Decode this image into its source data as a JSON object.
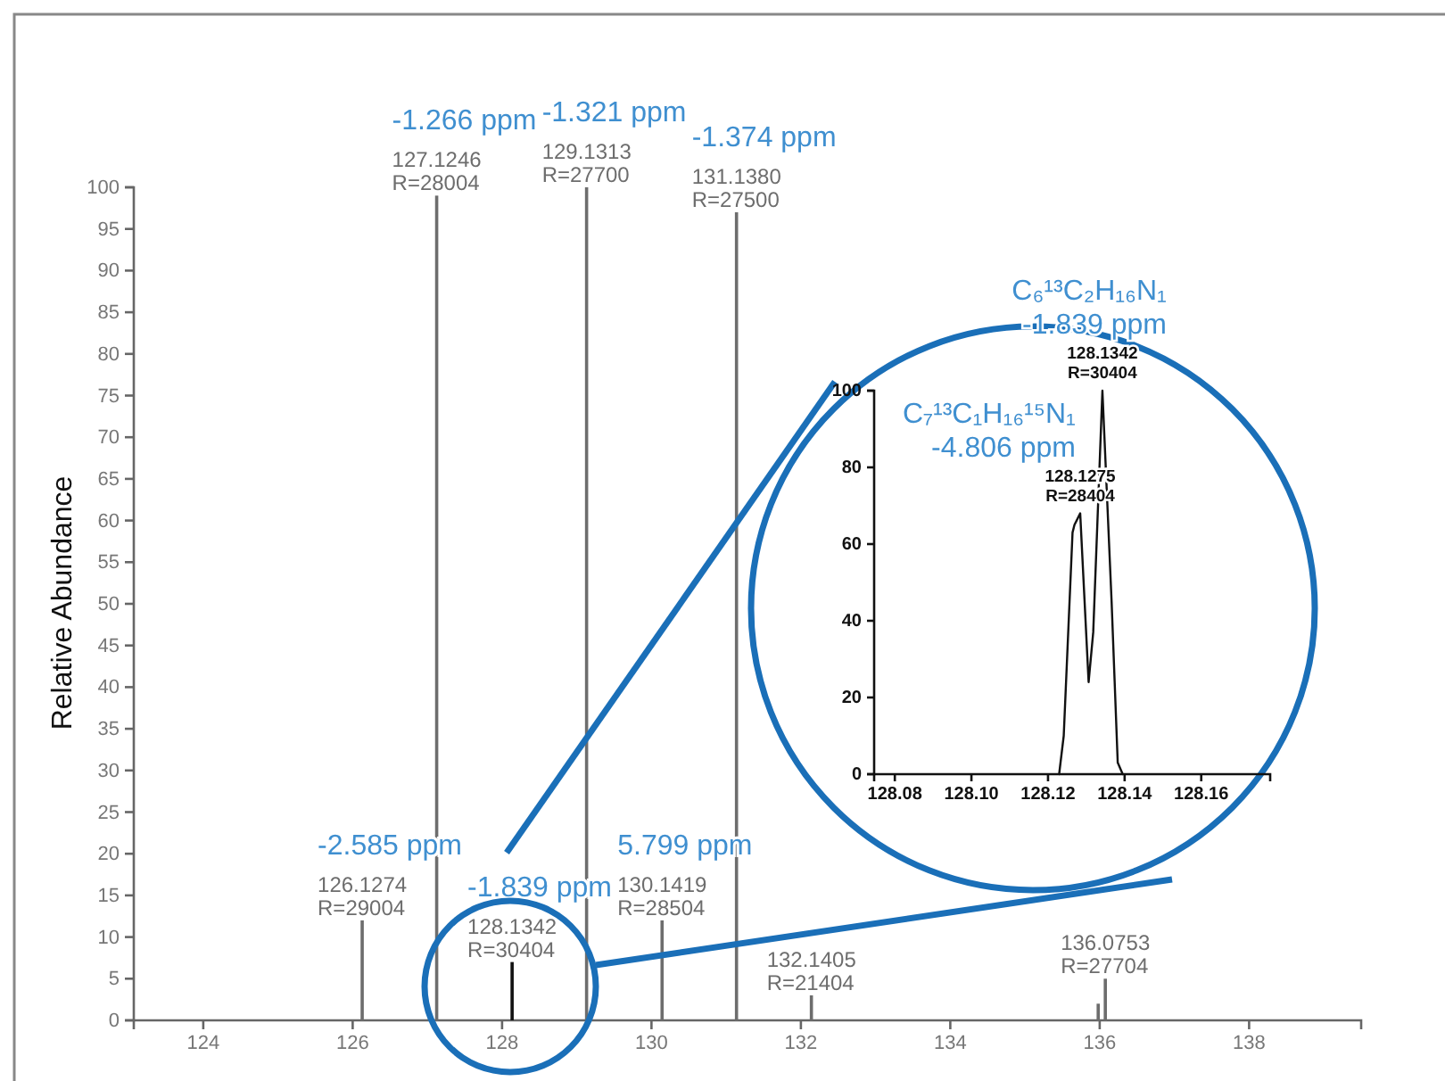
{
  "chart_data": [
    {
      "type": "bar",
      "ylabel": "Relative Abundance",
      "x": [
        126.1274,
        127.1246,
        128.1342,
        129.1313,
        130.1419,
        131.138,
        132.1405,
        135.98,
        136.0753
      ],
      "values": [
        12,
        99,
        7,
        100,
        12,
        97,
        3,
        2,
        5
      ],
      "colors": [
        "#6d6d6d",
        "#6d6d6d",
        "#111111",
        "#6d6d6d",
        "#6d6d6d",
        "#6d6d6d",
        "#6d6d6d",
        "#6d6d6d",
        "#6d6d6d"
      ],
      "xlim": [
        123.07,
        139.5
      ],
      "xticks": [
        124,
        126,
        128,
        130,
        132,
        134,
        136,
        138
      ],
      "ylim": [
        0,
        100
      ],
      "yticks": [
        0,
        5,
        10,
        15,
        20,
        25,
        30,
        35,
        40,
        45,
        50,
        55,
        60,
        65,
        70,
        75,
        80,
        85,
        90,
        95,
        100
      ],
      "annotations": [
        {
          "text": "-2.585 ppm",
          "x": 126.1274,
          "y": 12
        },
        {
          "text": "126.1274",
          "x": 126.1274,
          "y": 12
        },
        {
          "text": "R=29004",
          "x": 126.1274,
          "y": 12
        },
        {
          "text": "-1.266 ppm",
          "x": 127.1246,
          "y": 99
        },
        {
          "text": "127.1246",
          "x": 127.1246,
          "y": 99
        },
        {
          "text": "R=28004",
          "x": 127.1246,
          "y": 99
        },
        {
          "text": "-1.839 ppm",
          "x": 128.1342,
          "y": 7
        },
        {
          "text": "128.1342",
          "x": 128.1342,
          "y": 7
        },
        {
          "text": "R=30404",
          "x": 128.1342,
          "y": 7
        },
        {
          "text": "-1.321 ppm",
          "x": 129.1313,
          "y": 100
        },
        {
          "text": "129.1313",
          "x": 129.1313,
          "y": 100
        },
        {
          "text": "R=27700",
          "x": 129.1313,
          "y": 100
        },
        {
          "text": "5.799 ppm",
          "x": 130.1419,
          "y": 12
        },
        {
          "text": "130.1419",
          "x": 130.1419,
          "y": 12
        },
        {
          "text": "R=28504",
          "x": 130.1419,
          "y": 12
        },
        {
          "text": "-1.374 ppm",
          "x": 131.138,
          "y": 97
        },
        {
          "text": "131.1380",
          "x": 131.138,
          "y": 97
        },
        {
          "text": "R=27500",
          "x": 131.138,
          "y": 97
        },
        {
          "text": "132.1405",
          "x": 132.1405,
          "y": 3
        },
        {
          "text": "R=21404",
          "x": 132.1405,
          "y": 3
        },
        {
          "text": "136.0753",
          "x": 136.0753,
          "y": 5
        },
        {
          "text": "R=27704",
          "x": 136.0753,
          "y": 5
        }
      ]
    },
    {
      "type": "line",
      "x": [
        128.1229,
        128.1241,
        128.1264,
        128.1269,
        128.1284,
        128.1306,
        128.1318,
        128.1342,
        128.1366,
        128.1382,
        128.1395
      ],
      "values": [
        0,
        10,
        63,
        65,
        68,
        24,
        37,
        100,
        45,
        3,
        0
      ],
      "color": "#111111",
      "xlim": [
        128.0746,
        128.178
      ],
      "xticks": [
        128.08,
        {
          "value": 128.1,
          "label": "128.10"
        },
        128.12,
        128.14,
        128.16
      ],
      "ylim": [
        0,
        100
      ],
      "yticks": [
        0,
        20,
        40,
        60,
        80,
        100
      ],
      "marker": "none",
      "line_style": "solid",
      "annotations": [
        {
          "text": "C₇¹³C₁H₁₆¹⁵N₁",
          "x": 128.1284,
          "y": 68
        },
        {
          "text": "-4.806 ppm",
          "x": 128.1284,
          "y": 68
        },
        {
          "text": "128.1275",
          "x": 128.1284,
          "y": 68
        },
        {
          "text": "R=28404",
          "x": 128.1284,
          "y": 68
        },
        {
          "text": "C₆¹³C₂H₁₆N₁",
          "x": 128.1342,
          "y": 100
        },
        {
          "text": "-1.839 ppm",
          "x": 128.1342,
          "y": 100
        },
        {
          "text": "128.1342",
          "x": 128.1342,
          "y": 100
        },
        {
          "text": "R=30404",
          "x": 128.1342,
          "y": 100
        }
      ]
    }
  ]
}
